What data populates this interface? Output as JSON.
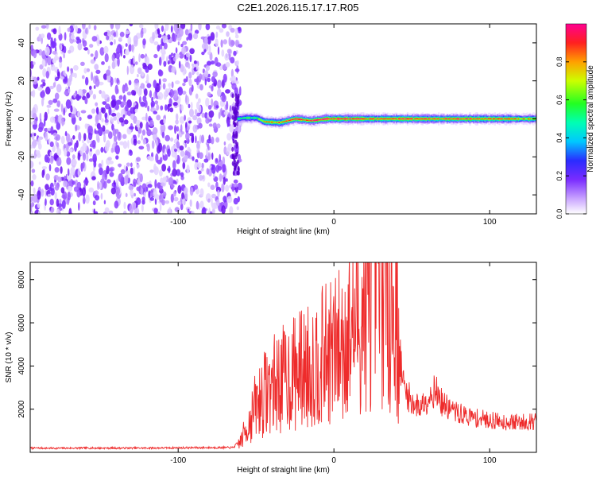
{
  "title": "C2E1.2026.115.17.17.R05",
  "chart_data": [
    {
      "type": "heatmap",
      "xlabel": "Height of straight line (km)",
      "ylabel": "Frequency (Hz)",
      "xlim": [
        -195,
        130
      ],
      "ylim": [
        -50,
        50
      ],
      "x_ticks": [
        -100,
        0,
        100
      ],
      "y_ticks": [
        -40,
        -20,
        0,
        20,
        40
      ],
      "colorbar": {
        "label": "Normalized spectral amplitude",
        "range": [
          0.0,
          1.0
        ],
        "ticks": [
          0.0,
          0.2,
          0.4,
          0.6,
          0.8
        ],
        "tick_labels": [
          "0.0",
          "0.2",
          "0.4",
          "0.6",
          "0.8"
        ]
      },
      "noise_region": {
        "x_from": -195,
        "x_to": -62,
        "freq_span": [
          -50,
          50
        ],
        "amplitude": "low (0.0-0.3)"
      },
      "signal_line": [
        {
          "x": -62,
          "freq": 0.0,
          "amplitude": 0.5
        },
        {
          "x": -58,
          "freq": 0.5,
          "amplitude": 0.55
        },
        {
          "x": -50,
          "freq": 0.5,
          "amplitude": 0.55
        },
        {
          "x": -45,
          "freq": -1.5,
          "amplitude": 0.8
        },
        {
          "x": -35,
          "freq": -2.0,
          "amplitude": 0.85
        },
        {
          "x": -25,
          "freq": 0.0,
          "amplitude": 0.9
        },
        {
          "x": -15,
          "freq": -1.0,
          "amplitude": 0.9
        },
        {
          "x": -5,
          "freq": 0.0,
          "amplitude": 0.95
        },
        {
          "x": 10,
          "freq": 0.0,
          "amplitude": 0.95
        },
        {
          "x": 30,
          "freq": 0.0,
          "amplitude": 0.9
        },
        {
          "x": 60,
          "freq": 0.0,
          "amplitude": 0.85
        },
        {
          "x": 90,
          "freq": 0.0,
          "amplitude": 0.9
        },
        {
          "x": 110,
          "freq": 0.0,
          "amplitude": 0.8
        },
        {
          "x": 130,
          "freq": 0.0,
          "amplitude": 0.75
        }
      ]
    },
    {
      "type": "line",
      "xlabel": "Height of straight line (km)",
      "ylabel": "SNR (10 * v/v)",
      "xlim": [
        -195,
        130
      ],
      "ylim": [
        0,
        8800
      ],
      "x_ticks": [
        -100,
        0,
        100
      ],
      "y_ticks": [
        2000,
        4000,
        6000,
        8000
      ],
      "series": [
        {
          "color": "#ee2b2b",
          "x": [
            -195,
            -180,
            -160,
            -140,
            -120,
            -100,
            -80,
            -65,
            -60,
            -55,
            -50,
            -45,
            -40,
            -35,
            -30,
            -25,
            -20,
            -15,
            -10,
            -5,
            0,
            5,
            10,
            15,
            20,
            25,
            28,
            32,
            36,
            40,
            42,
            45,
            50,
            55,
            60,
            65,
            70,
            75,
            80,
            90,
            100,
            110,
            120,
            130
          ],
          "y": [
            200,
            190,
            200,
            195,
            200,
            210,
            220,
            220,
            500,
            1300,
            2200,
            2700,
            3100,
            3300,
            3500,
            3700,
            3900,
            4000,
            4300,
            4500,
            4700,
            5000,
            5600,
            6000,
            6500,
            7600,
            8400,
            7800,
            7200,
            6200,
            4500,
            3000,
            2300,
            2100,
            2500,
            2900,
            2200,
            2000,
            1800,
            1600,
            1500,
            1400,
            1400,
            1450
          ]
        }
      ]
    }
  ]
}
